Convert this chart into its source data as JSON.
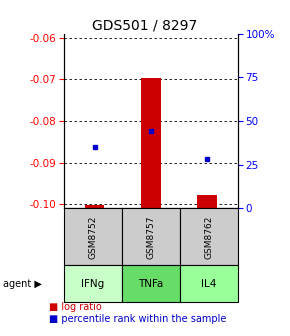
{
  "title": "GDS501 / 8297",
  "samples": [
    "GSM8752",
    "GSM8757",
    "GSM8762"
  ],
  "agents": [
    "IFNg",
    "TNFa",
    "IL4"
  ],
  "ylim_left": [
    -0.101,
    -0.059
  ],
  "ylim_right": [
    0,
    100
  ],
  "yticks_left": [
    -0.1,
    -0.09,
    -0.08,
    -0.07,
    -0.06
  ],
  "yticks_right": [
    0,
    25,
    50,
    75,
    100
  ],
  "log_ratios": [
    -0.1003,
    -0.0697,
    -0.0978
  ],
  "bar_base": -0.101,
  "percentile_ranks": [
    35.0,
    44.0,
    28.0
  ],
  "agent_colors": [
    "#c8ffc8",
    "#66dd66",
    "#99ff99"
  ],
  "sample_box_color": "#cccccc",
  "bar_color": "#cc0000",
  "dot_color": "#0000cc",
  "title_fontsize": 10,
  "tick_fontsize": 7.5,
  "legend_fontsize": 7
}
